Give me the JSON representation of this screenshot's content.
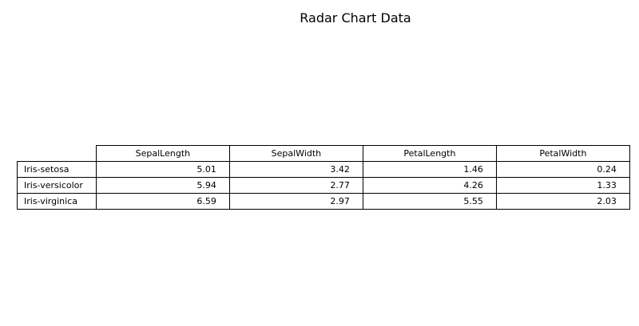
{
  "chart_data": {
    "type": "table",
    "title": "Radar Chart Data",
    "columns": [
      "SepalLength",
      "SepalWidth",
      "PetalLength",
      "PetalWidth"
    ],
    "rows": [
      {
        "label": "Iris-setosa",
        "values": [
          "5.01",
          "3.42",
          "1.46",
          "0.24"
        ]
      },
      {
        "label": "Iris-versicolor",
        "values": [
          "5.94",
          "2.77",
          "4.26",
          "1.33"
        ]
      },
      {
        "label": "Iris-virginica",
        "values": [
          "6.59",
          "2.97",
          "5.55",
          "2.03"
        ]
      }
    ]
  }
}
